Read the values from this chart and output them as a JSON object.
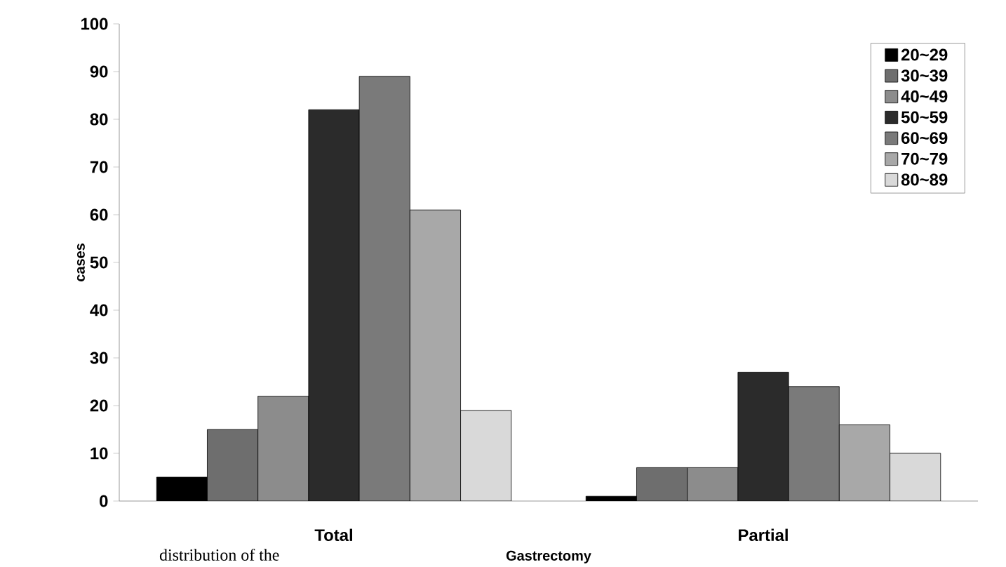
{
  "chart_data": {
    "type": "bar",
    "xlabel": "Gastrectomy",
    "ylabel": "cases",
    "categories": [
      "Total",
      "Partial"
    ],
    "series": [
      {
        "name": "20~29",
        "color": "#000000",
        "values": [
          5,
          1
        ]
      },
      {
        "name": "30~39",
        "color": "#6e6e6e",
        "values": [
          15,
          7
        ]
      },
      {
        "name": "40~49",
        "color": "#8c8c8c",
        "values": [
          22,
          7
        ]
      },
      {
        "name": "50~59",
        "color": "#2b2b2b",
        "values": [
          82,
          27
        ]
      },
      {
        "name": "60~69",
        "color": "#7a7a7a",
        "values": [
          89,
          24
        ]
      },
      {
        "name": "70~79",
        "color": "#a8a8a8",
        "values": [
          61,
          16
        ]
      },
      {
        "name": "80~89",
        "color": "#d9d9d9",
        "values": [
          19,
          10
        ]
      }
    ],
    "ylim": [
      0,
      100
    ],
    "yticks": [
      0,
      10,
      20,
      30,
      40,
      50,
      60,
      70,
      80,
      90,
      100
    ],
    "grid": false,
    "legend": "top right",
    "annotations": [
      "distribution of the"
    ]
  }
}
